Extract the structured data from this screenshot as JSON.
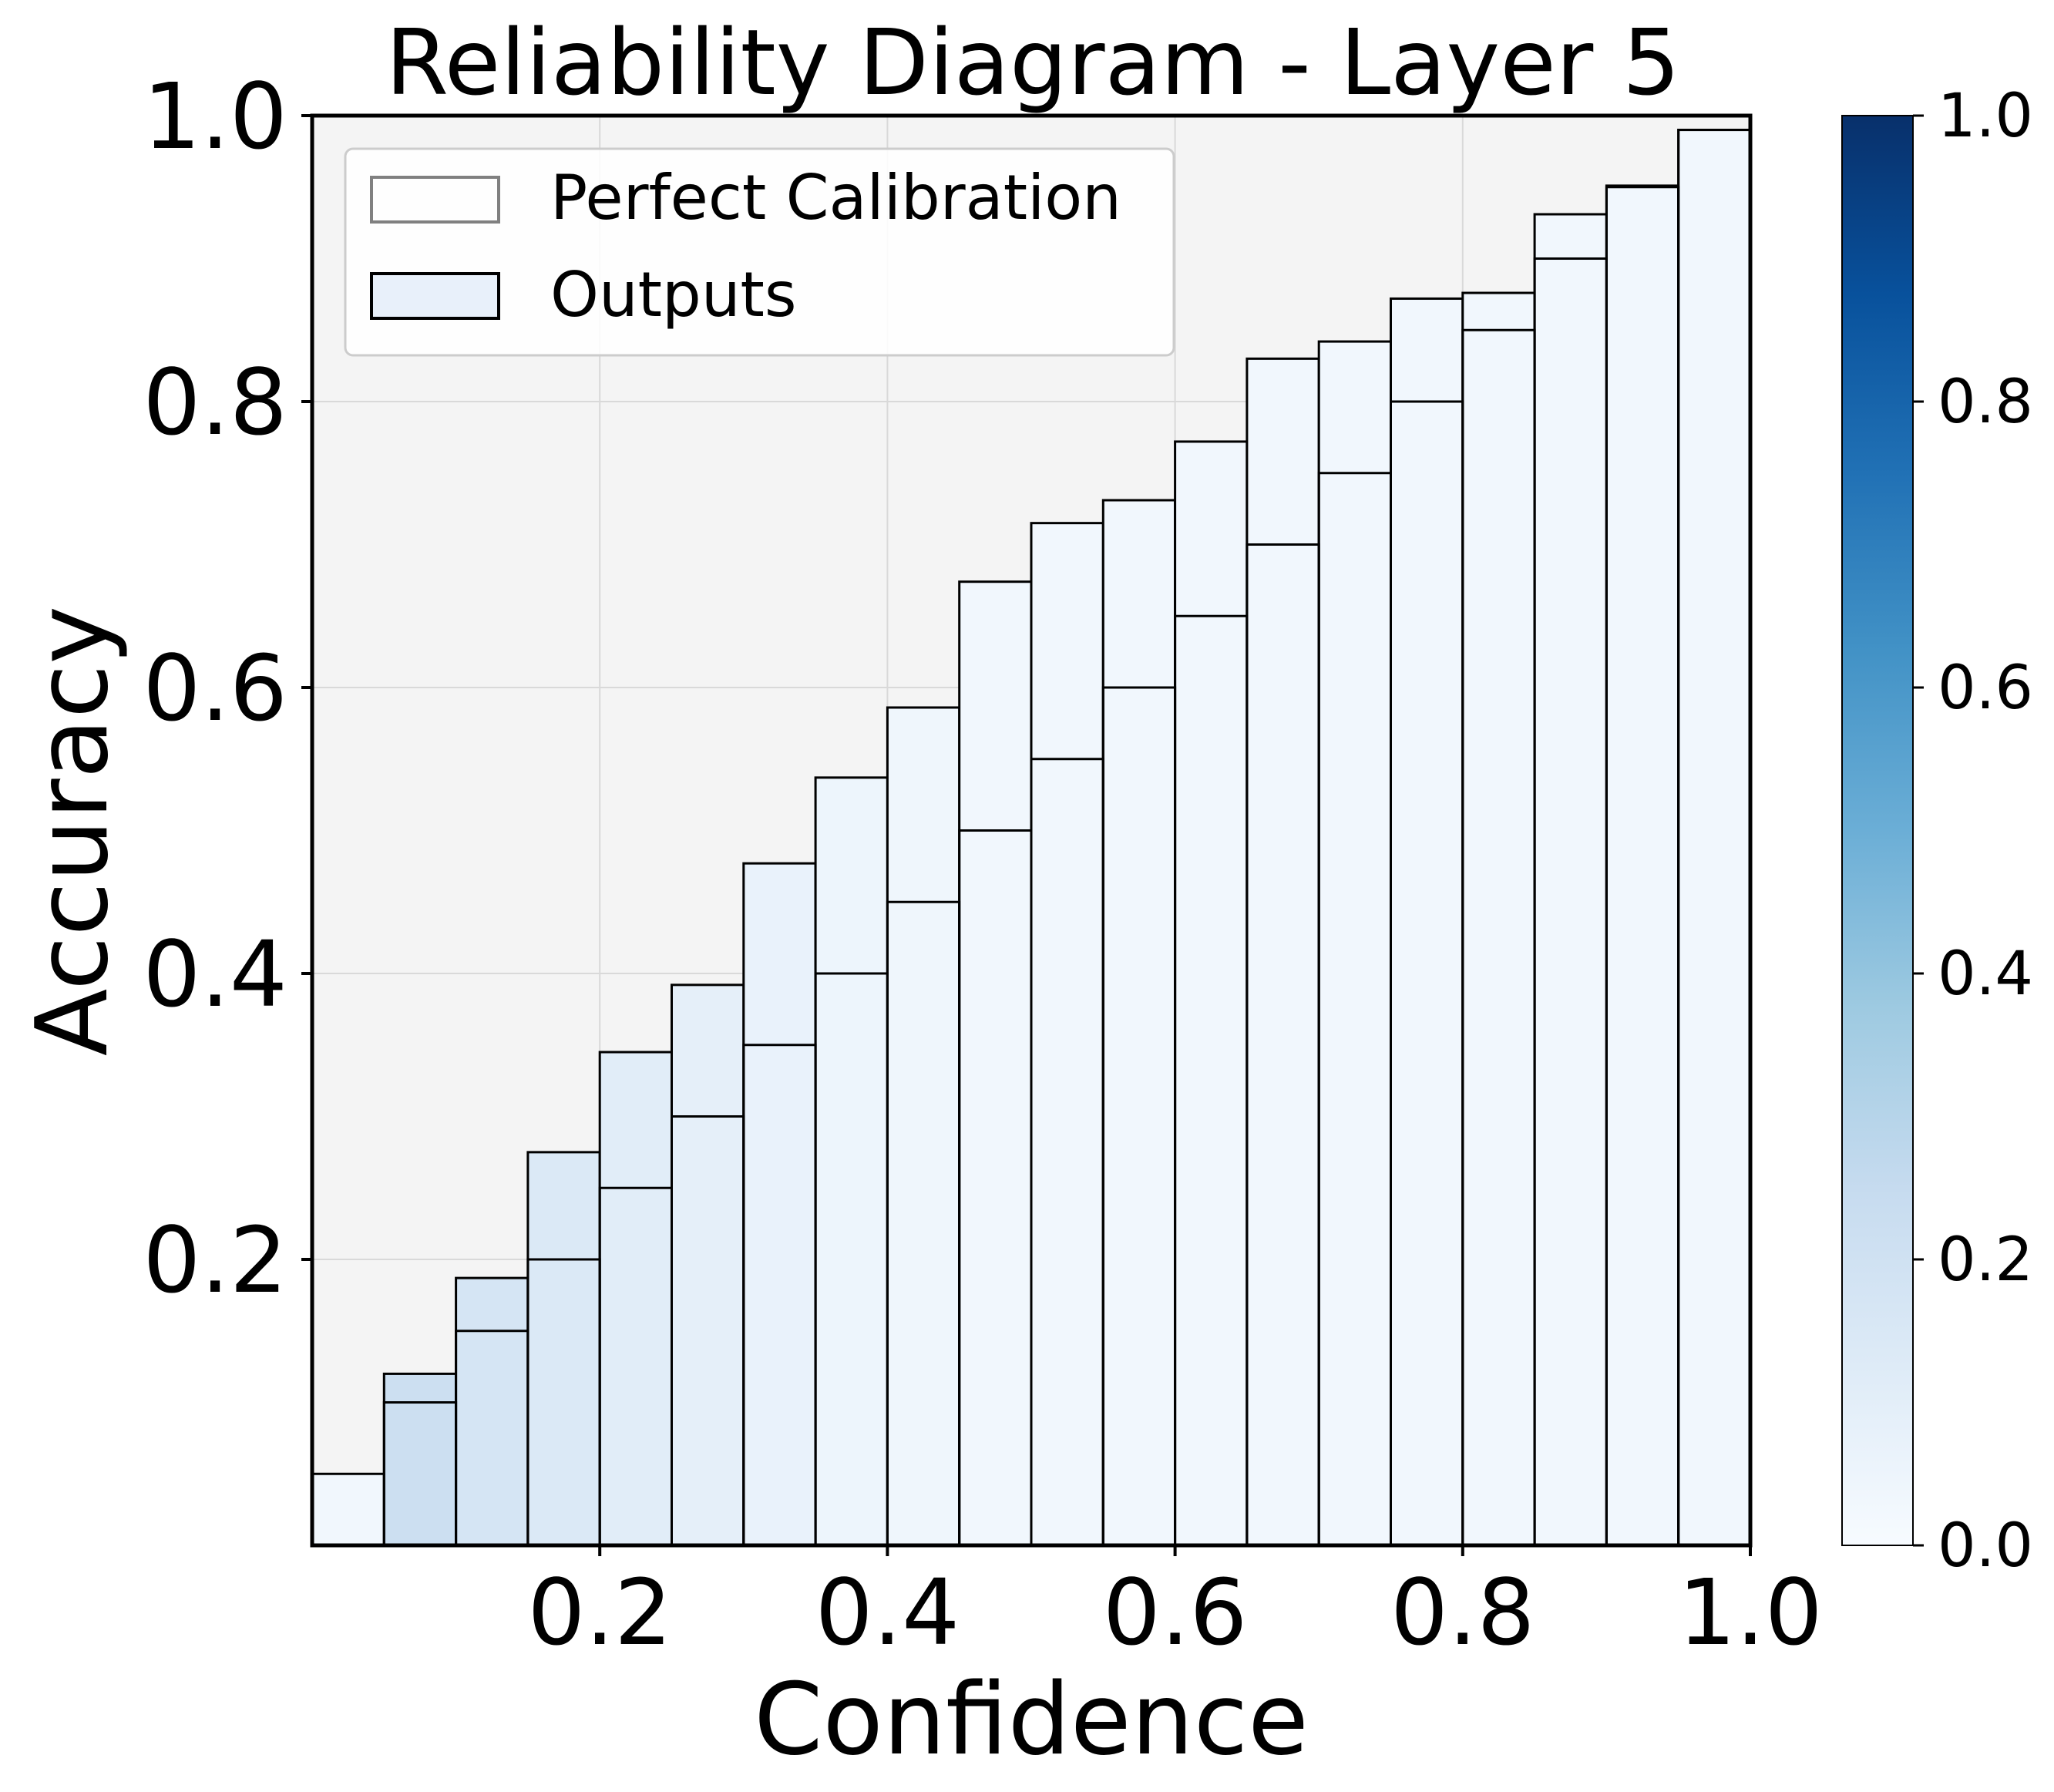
{
  "chart_data": {
    "type": "bar",
    "title": "Reliability Diagram - Layer 5",
    "xlabel": "Confidence",
    "ylabel": "Accuracy",
    "xlim": [
      0,
      1
    ],
    "ylim": [
      0,
      1
    ],
    "grid": true,
    "legend_position": "top-left",
    "x_ticks": [
      "0.2",
      "0.4",
      "0.6",
      "0.8",
      "1.0"
    ],
    "y_ticks": [
      "0.2",
      "0.4",
      "0.6",
      "0.8",
      "1.0"
    ],
    "bin_edges": [
      0,
      0.05,
      0.1,
      0.15,
      0.2,
      0.25,
      0.3,
      0.35,
      0.4,
      0.45,
      0.5,
      0.55,
      0.6,
      0.65,
      0.7,
      0.75,
      0.8,
      0.85,
      0.9,
      0.95,
      1.0
    ],
    "series": [
      {
        "name": "Perfect Calibration",
        "values": [
          0.0,
          0.1,
          0.15,
          0.2,
          0.25,
          0.3,
          0.35,
          0.4,
          0.45,
          0.5,
          0.55,
          0.6,
          0.65,
          0.7,
          0.75,
          0.8,
          0.85,
          0.9,
          0.95,
          0.99
        ]
      },
      {
        "name": "Outputs",
        "values": [
          0.05,
          0.12,
          0.187,
          0.275,
          0.345,
          0.392,
          0.477,
          0.537,
          0.586,
          0.674,
          0.715,
          0.731,
          0.772,
          0.83,
          0.842,
          0.872,
          0.876,
          0.931,
          0.951,
          0.99
        ],
        "color_values": [
          0.03,
          0.22,
          0.17,
          0.14,
          0.11,
          0.09,
          0.07,
          0.05,
          0.04,
          0.03,
          0.03,
          0.03,
          0.03,
          0.03,
          0.03,
          0.03,
          0.03,
          0.03,
          0.03,
          0.03
        ]
      }
    ],
    "colorbar": {
      "colormap": "Blues",
      "range": [
        0,
        1
      ],
      "ticks": [
        "0.0",
        "0.2",
        "0.4",
        "0.6",
        "0.8",
        "1.0"
      ],
      "colors": [
        "#f7fbff",
        "#deebf7",
        "#c6dbef",
        "#9ecae1",
        "#6baed6",
        "#4292c6",
        "#2171b5",
        "#08519c",
        "#08306b"
      ]
    },
    "colors": {
      "plot_background": "#f4f4f4",
      "grid": "#d9d9d9",
      "perfect_edge": "#000000",
      "outputs_edge": "#000000"
    }
  }
}
